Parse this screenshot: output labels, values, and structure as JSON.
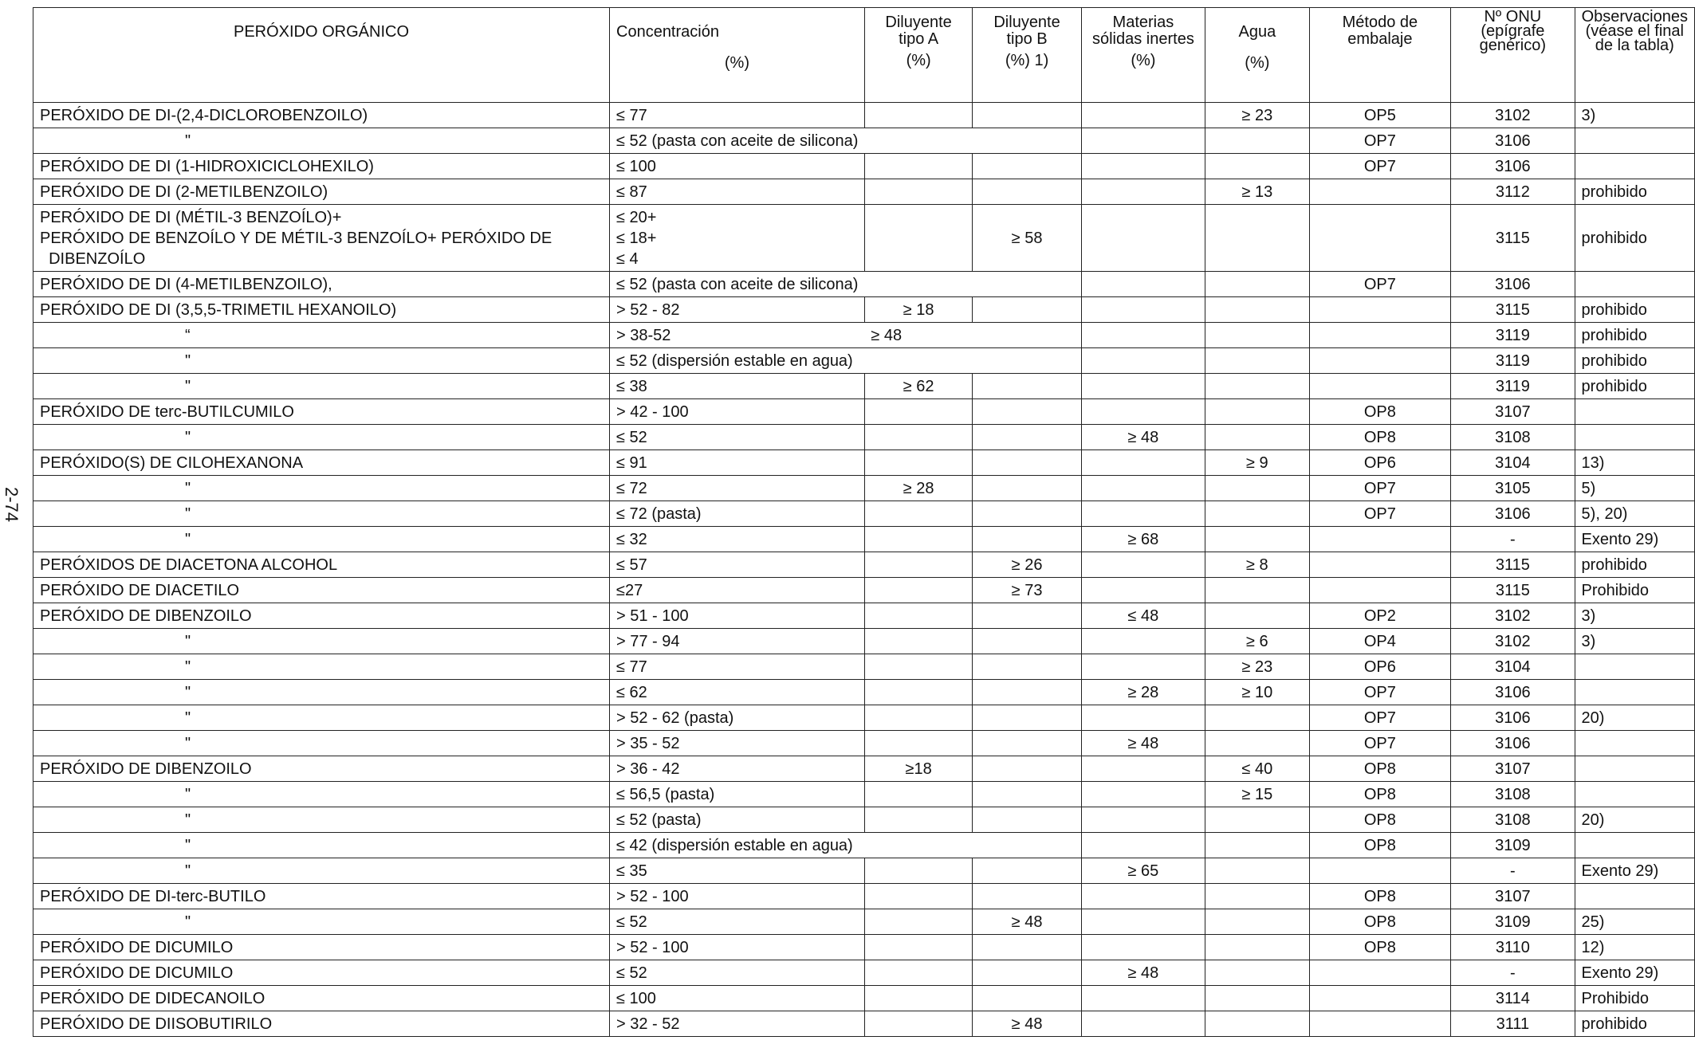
{
  "page_number": "2-74",
  "headers": {
    "peroxide": "PERÓXIDO ORGÁNICO",
    "concentration": "Concentración",
    "concentration_unit": "(%)",
    "diluent_a": "Diluyente tipo A",
    "diluent_a_unit": "(%)",
    "diluent_b": "Diluyente tipo B",
    "diluent_b_unit": "(%) 1)",
    "inert_solids": "Materias sólidas inertes",
    "inert_solids_unit": "(%)",
    "water": "Agua",
    "water_unit": "(%)",
    "packing_method": "Método de embalaje",
    "un_number": "Nº ONU (epígrafe genérico)",
    "remarks": "Observaciones (véase el final de la tabla)"
  },
  "rows": [
    {
      "name": "PERÓXIDO DE DI-(2,4-DICLOROBENZOILO)",
      "conc": "≤ 77",
      "a": "",
      "b": "",
      "solids": "",
      "water": "≥ 23",
      "method": "OP5",
      "un": "3102",
      "obs": " 3)"
    },
    {
      "name": "\"",
      "conc": "≤ 52 (pasta con aceite de silicona)",
      "a": "",
      "b": "",
      "solids": "",
      "water": "",
      "method": "OP7",
      "un": "3106",
      "obs": "",
      "ditto": true,
      "span": 3
    },
    {
      "name": "PERÓXIDO DE DI (1-HIDROXICICLOHEXILO)",
      "conc": "≤ 100",
      "a": "",
      "b": "",
      "solids": "",
      "water": "",
      "method": "OP7",
      "un": "3106",
      "obs": ""
    },
    {
      "name": "PERÓXIDO DE DI (2-METILBENZOILO)",
      "conc": "≤ 87",
      "a": "",
      "b": "",
      "solids": "",
      "water": "≥ 13",
      "method": "",
      "un": "3112",
      "obs": "prohibido"
    },
    {
      "name_lines": [
        "PERÓXIDO DE DI (MÉTIL-3 BENZOÍLO)+",
        "PERÓXIDO DE BENZOÍLO Y DE MÉTIL-3 BENZOÍLO+ PERÓXIDO DE",
        "  DIBENZOÍLO"
      ],
      "conc_lines": [
        "≤ 20+",
        "≤ 18+",
        "≤ 4"
      ],
      "a": "",
      "b": "≥ 58",
      "solids": "",
      "water": "",
      "method": "",
      "un": "3115",
      "obs": "prohibido",
      "multi": true
    },
    {
      "name": "PERÓXIDO DE DI (4-METILBENZOILO),",
      "conc": "≤ 52 (pasta con aceite de silicona)",
      "a": "",
      "b": "",
      "solids": "",
      "water": "",
      "method": "OP7",
      "un": "3106",
      "obs": "",
      "span": 3
    },
    {
      "name": "PERÓXIDO DE DI (3,5,5-TRIMETIL HEXANOILO)",
      "conc": "> 52 - 82",
      "a": "≥ 18",
      "b": "",
      "solids": "",
      "water": "",
      "method": "",
      "un": "3115",
      "obs": "prohibido"
    },
    {
      "name": "“",
      "conc": "> 38-52",
      "a": "≥ 48",
      "b": "",
      "solids": "",
      "water": "",
      "method": "",
      "un": "3119",
      "obs": "prohibido",
      "ditto": true,
      "span": 3,
      "a_inline": true
    },
    {
      "name": "\"",
      "conc": "≤ 52 (dispersión estable en agua)",
      "a": "",
      "b": "",
      "solids": "",
      "water": "",
      "method": "",
      "un": "3119",
      "obs": "prohibido",
      "ditto": true,
      "span": 3
    },
    {
      "name": "\"",
      "conc": "≤ 38",
      "a": "≥ 62",
      "b": "",
      "solids": "",
      "water": "",
      "method": "",
      "un": "3119",
      "obs": "prohibido",
      "ditto": true
    },
    {
      "name": "PERÓXIDO DE terc-BUTILCUMILO",
      "conc": "> 42 - 100",
      "a": "",
      "b": "",
      "solids": "",
      "water": "",
      "method": "OP8",
      "un": "3107",
      "obs": ""
    },
    {
      "name": "\"",
      "conc": "≤ 52",
      "a": "",
      "b": "",
      "solids": "≥ 48",
      "water": "",
      "method": "OP8",
      "un": "3108",
      "obs": "",
      "ditto": true
    },
    {
      "name": "PERÓXIDO(S) DE CILOHEXANONA",
      "conc": "≤ 91",
      "a": "",
      "b": "",
      "solids": "",
      "water": "≥ 9",
      "method": "OP6",
      "un": "3104",
      "obs": "13)"
    },
    {
      "name": "\"",
      "conc": "≤ 72",
      "a": "≥ 28",
      "b": "",
      "solids": "",
      "water": "",
      "method": "OP7",
      "un": "3105",
      "obs": "5)",
      "ditto": true
    },
    {
      "name": "\"",
      "conc": "≤ 72 (pasta)",
      "a": "",
      "b": "",
      "solids": "",
      "water": "",
      "method": "OP7",
      "un": "3106",
      "obs": "5), 20)",
      "ditto": true
    },
    {
      "name": "\"",
      "conc": "≤ 32",
      "a": "",
      "b": "",
      "solids": "≥ 68",
      "water": "",
      "method": "",
      "un": "-",
      "obs": "Exento   29)",
      "ditto": true
    },
    {
      "name": "PERÓXIDOS DE DIACETONA ALCOHOL",
      "conc": "≤ 57",
      "a": "",
      "b": "≥ 26",
      "solids": "",
      "water": "≥ 8",
      "method": "",
      "un": "3115",
      "obs": "prohibido"
    },
    {
      "name": "PERÓXIDO DE DIACETILO",
      "conc": "≤27",
      "a": "",
      "b": "≥ 73",
      "solids": "",
      "water": "",
      "method": "",
      "un": "3115",
      "obs": "Prohibido"
    },
    {
      "name": "PERÓXIDO DE DIBENZOILO",
      "conc": "> 51 - 100",
      "a": "",
      "b": "",
      "solids": "≤ 48",
      "water": "",
      "method": "OP2",
      "un": "3102",
      "obs": "3)"
    },
    {
      "name": "\"",
      "conc": "> 77 - 94",
      "a": "",
      "b": "",
      "solids": "",
      "water": "≥ 6",
      "method": "OP4",
      "un": "3102",
      "obs": "3)",
      "ditto": true
    },
    {
      "name": "\"",
      "conc": "≤ 77",
      "a": "",
      "b": "",
      "solids": "",
      "water": "≥ 23",
      "method": "OP6",
      "un": "3104",
      "obs": "",
      "ditto": true
    },
    {
      "name": "\"",
      "conc": "≤ 62",
      "a": "",
      "b": "",
      "solids": "≥ 28",
      "water": "≥ 10",
      "method": "OP7",
      "un": "3106",
      "obs": "",
      "ditto": true
    },
    {
      "name": "\"",
      "conc": "> 52 - 62 (pasta)",
      "a": "",
      "b": "",
      "solids": "",
      "water": "",
      "method": "OP7",
      "un": "3106",
      "obs": "20)",
      "ditto": true
    },
    {
      "name": "\"",
      "conc": "> 35 - 52",
      "a": "",
      "b": "",
      "solids": "≥ 48",
      "water": "",
      "method": "OP7",
      "un": "3106",
      "obs": "",
      "ditto": true
    },
    {
      "name": "PERÓXIDO DE DIBENZOILO",
      "conc": "> 36 - 42",
      "a": "≥18",
      "b": "",
      "solids": "",
      "water": "≤ 40",
      "method": "OP8",
      "un": "3107",
      "obs": ""
    },
    {
      "name": "\"",
      "conc": "≤  56,5 (pasta)",
      "a": "",
      "b": "",
      "solids": "",
      "water": "≥ 15",
      "method": "OP8",
      "un": "3108",
      "obs": "",
      "ditto": true
    },
    {
      "name": "\"",
      "conc": "≤  52 (pasta)",
      "a": "",
      "b": "",
      "solids": "",
      "water": "",
      "method": "OP8",
      "un": "3108",
      "obs": "20)",
      "ditto": true
    },
    {
      "name": "\"",
      "conc": "≤  42 (dispersión estable en agua)",
      "a": "",
      "b": "",
      "solids": "",
      "water": "",
      "method": "OP8",
      "un": "3109",
      "obs": "",
      "ditto": true,
      "span": 3
    },
    {
      "name": "\"",
      "conc": "≤  35",
      "a": "",
      "b": "",
      "solids": "≥ 65",
      "water": "",
      "method": "",
      "un": "-",
      "obs": "Exento   29)",
      "ditto": true
    },
    {
      "name": "PERÓXIDO DE DI-terc-BUTILO",
      "conc": "> 52 - 100",
      "a": "",
      "b": "",
      "solids": "",
      "water": "",
      "method": "OP8",
      "un": "3107",
      "obs": ""
    },
    {
      "name": "\"",
      "conc": "≤ 52",
      "a": "",
      "b": "≥ 48",
      "solids": "",
      "water": "",
      "method": "OP8",
      "un": "3109",
      "obs": "25)",
      "ditto": true
    },
    {
      "name": "PERÓXIDO DE DICUMILO",
      "conc": "> 52 - 100",
      "a": "",
      "b": "",
      "solids": "",
      "water": "",
      "method": "OP8",
      "un": "3110",
      "obs": "12)"
    },
    {
      "name": "PERÓXIDO DE DICUMILO",
      "conc": "≤ 52",
      "a": "",
      "b": "",
      "solids": "≥ 48",
      "water": "",
      "method": "",
      "un": "-",
      "obs": "Exento   29)"
    },
    {
      "name": "PERÓXIDO DE DIDECANOILO",
      "conc": "≤ 100",
      "a": "",
      "b": "",
      "solids": "",
      "water": "",
      "method": "",
      "un": "3114",
      "obs": "Prohibido"
    },
    {
      "name": "PERÓXIDO DE DIISOBUTIRILO",
      "conc": "> 32 - 52",
      "a": "",
      "b": "≥ 48",
      "solids": "",
      "water": "",
      "method": "",
      "un": "3111",
      "obs": "prohibido"
    }
  ]
}
